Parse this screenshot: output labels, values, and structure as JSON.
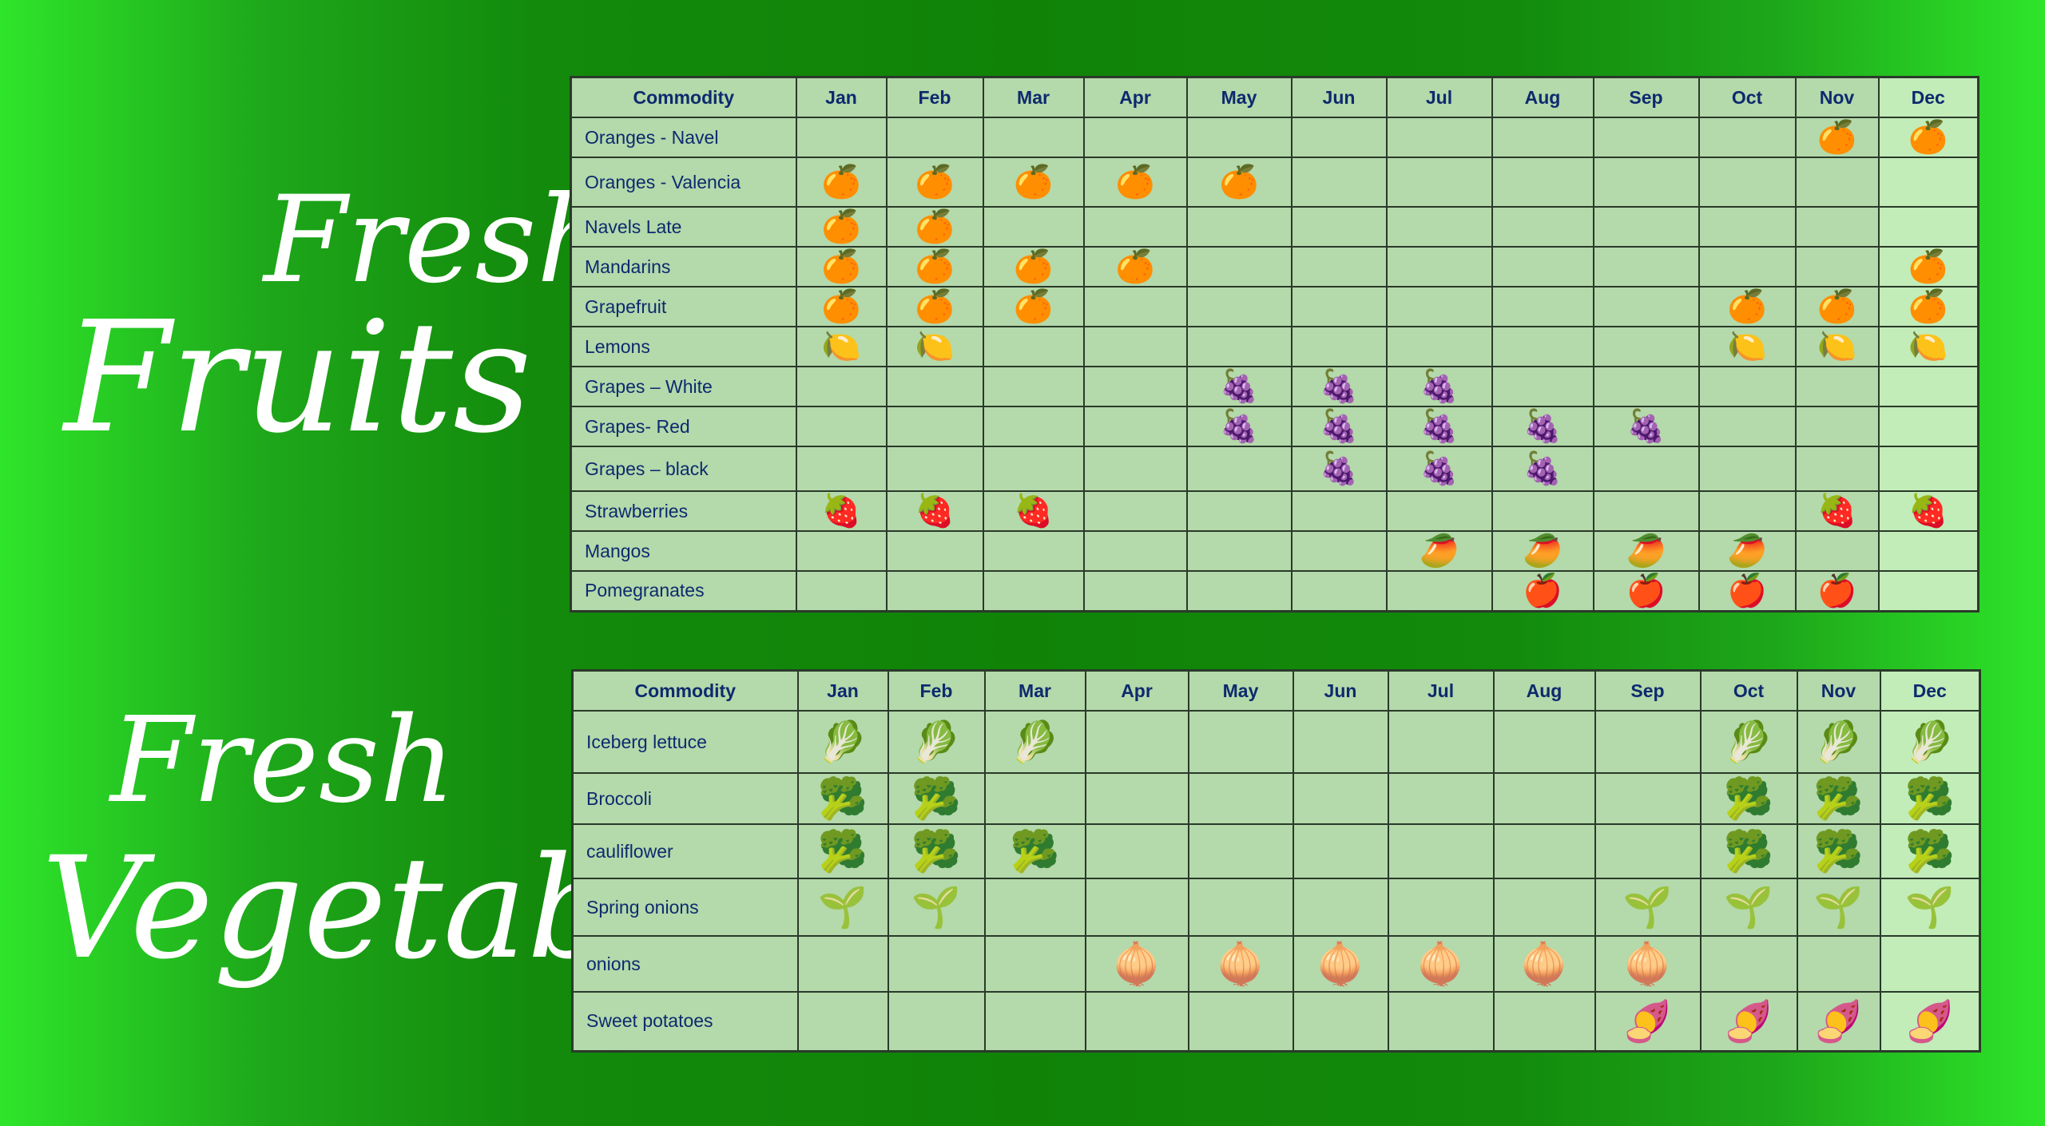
{
  "titles": {
    "fruits_line1": "Fresh",
    "fruits_line2": "Fruits",
    "veg_line1": "Fresh",
    "veg_line2": "Vegetables"
  },
  "months": [
    "Jan",
    "Feb",
    "Mar",
    "Apr",
    "May",
    "Jun",
    "Jul",
    "Aug",
    "Sep",
    "Oct",
    "Nov",
    "Dec"
  ],
  "fruits_table": {
    "header": "Commodity",
    "rows": [
      {
        "name": "Oranges - Navel",
        "icon": "orange-icon",
        "glyph": "🍊",
        "months": [
          "Nov",
          "Dec"
        ]
      },
      {
        "name": "Oranges - Valencia",
        "icon": "orange-icon",
        "glyph": "🍊",
        "months": [
          "Jan",
          "Feb",
          "Mar",
          "Apr",
          "May"
        ]
      },
      {
        "name": "Navels Late",
        "icon": "orange-icon",
        "glyph": "🍊",
        "months": [
          "Jan",
          "Feb"
        ]
      },
      {
        "name": "Mandarins",
        "icon": "mandarin-icon",
        "glyph": "🍊",
        "months": [
          "Jan",
          "Feb",
          "Mar",
          "Apr",
          "Dec"
        ]
      },
      {
        "name": "Grapefruit",
        "icon": "grapefruit-icon",
        "glyph": "🍊",
        "months": [
          "Jan",
          "Feb",
          "Mar",
          "Oct",
          "Nov",
          "Dec"
        ]
      },
      {
        "name": "Lemons",
        "icon": "lemon-icon",
        "glyph": "🍋",
        "months": [
          "Jan",
          "Feb",
          "Oct",
          "Nov",
          "Dec"
        ]
      },
      {
        "name": "Grapes – White",
        "icon": "white-grapes-icon",
        "glyph": "🍇",
        "months": [
          "May",
          "Jun",
          "Jul"
        ]
      },
      {
        "name": "Grapes- Red",
        "icon": "red-grapes-icon",
        "glyph": "🍇",
        "months": [
          "May",
          "Jun",
          "Jul",
          "Aug",
          "Sep"
        ]
      },
      {
        "name": "Grapes – black",
        "icon": "black-grapes-icon",
        "glyph": "🍇",
        "months": [
          "Jun",
          "Jul",
          "Aug"
        ]
      },
      {
        "name": "Strawberries",
        "icon": "strawberry-icon",
        "glyph": "🍓",
        "months": [
          "Jan",
          "Feb",
          "Mar",
          "Nov",
          "Dec"
        ]
      },
      {
        "name": "Mangos",
        "icon": "mango-icon",
        "glyph": "🥭",
        "months": [
          "Jul",
          "Aug",
          "Sep",
          "Oct"
        ]
      },
      {
        "name": "Pomegranates",
        "icon": "pomegranate-icon",
        "glyph": "🍎",
        "months": [
          "Aug",
          "Sep",
          "Oct",
          "Nov"
        ]
      }
    ]
  },
  "veg_table": {
    "header": "Commodity",
    "rows": [
      {
        "name": "Iceberg lettuce",
        "icon": "lettuce-icon",
        "glyph": "🥬",
        "months": [
          "Jan",
          "Feb",
          "Mar",
          "Oct",
          "Nov",
          "Dec"
        ]
      },
      {
        "name": "Broccoli",
        "icon": "broccoli-icon",
        "glyph": "🥦",
        "months": [
          "Jan",
          "Feb",
          "Oct",
          "Nov",
          "Dec"
        ]
      },
      {
        "name": "cauliflower",
        "icon": "cauliflower-icon",
        "glyph": "🥦",
        "months": [
          "Jan",
          "Feb",
          "Mar",
          "Oct",
          "Nov",
          "Dec"
        ]
      },
      {
        "name": "Spring onions",
        "icon": "spring-onion-icon",
        "glyph": "🌱",
        "months": [
          "Jan",
          "Feb",
          "Sep",
          "Oct",
          "Nov",
          "Dec"
        ]
      },
      {
        "name": "onions",
        "icon": "onion-icon",
        "glyph": "🧅",
        "months": [
          "Apr",
          "May",
          "Jun",
          "Jul",
          "Aug",
          "Sep"
        ]
      },
      {
        "name": "Sweet potatoes",
        "icon": "sweet-potato-icon",
        "glyph": "🍠",
        "months": [
          "Sep",
          "Oct",
          "Nov",
          "Dec"
        ]
      }
    ]
  },
  "colors": {
    "header_text": "#0d2a6e",
    "cell_bg": "#b4d9ab",
    "border": "#2a3a2a"
  }
}
